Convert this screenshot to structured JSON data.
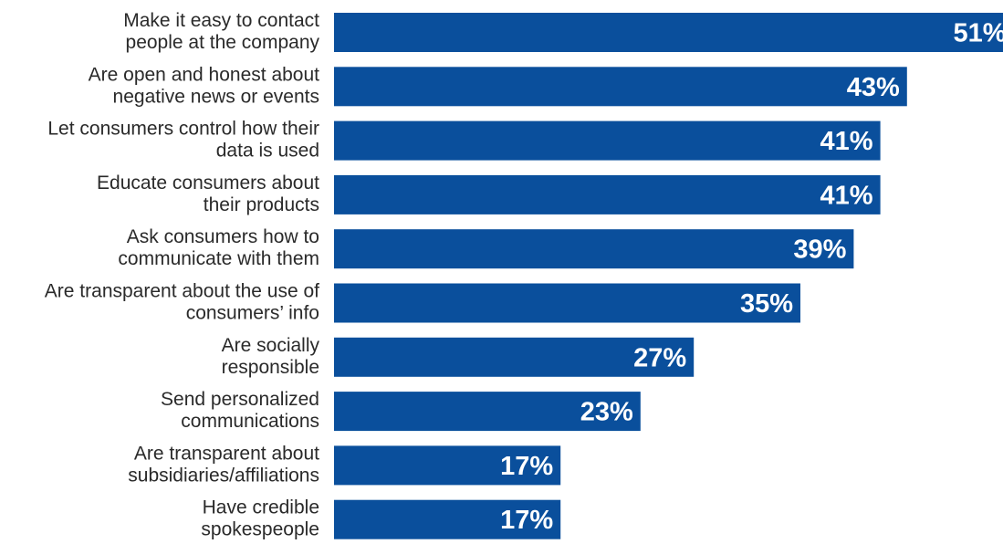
{
  "chart_data": {
    "type": "bar",
    "orientation": "horizontal",
    "bar_color": "#0a4f9c",
    "categories": [
      [
        "Make it easy to contact",
        "people at the company"
      ],
      [
        "Are open and honest about",
        "negative news or events"
      ],
      [
        "Let consumers control how their",
        "data is used"
      ],
      [
        "Educate consumers about",
        "their products"
      ],
      [
        "Ask consumers how to",
        "communicate with them"
      ],
      [
        "Are transparent about the use of",
        "consumers’ info"
      ],
      [
        "Are socially",
        "responsible"
      ],
      [
        "Send personalized",
        "communications"
      ],
      [
        "Are transparent about",
        "subsidiaries/affiliations"
      ],
      [
        "Have credible",
        "spokespeople"
      ]
    ],
    "values": [
      51,
      43,
      41,
      41,
      39,
      35,
      27,
      23,
      17,
      17
    ],
    "value_labels": [
      "51%",
      "43%",
      "41%",
      "41%",
      "39%",
      "35%",
      "27%",
      "23%",
      "17%",
      "17%"
    ],
    "unit": "%"
  }
}
